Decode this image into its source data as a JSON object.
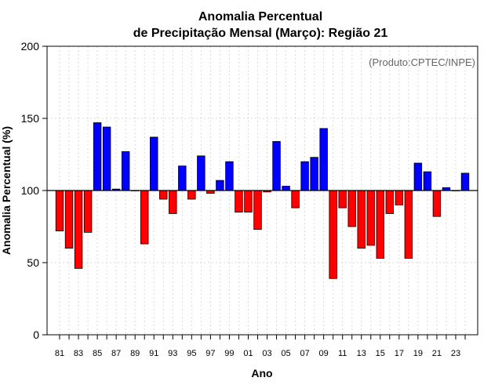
{
  "chart_data": {
    "type": "bar",
    "title_line1": "Anomalia Percentual",
    "title_line2": "de Precipitação Mensal (Março): Região 21",
    "xlabel": "Ano",
    "ylabel": "Anomalia Percentual (%)",
    "annotation": "(Produto:CPTEC/INPE)",
    "baseline": 100,
    "ylim": [
      0,
      200
    ],
    "yticks": [
      0,
      50,
      100,
      150,
      200
    ],
    "grid": true,
    "categories": [
      "1981",
      "1982",
      "1983",
      "1984",
      "1985",
      "1986",
      "1987",
      "1988",
      "1989",
      "1990",
      "1991",
      "1992",
      "1993",
      "1994",
      "1995",
      "1996",
      "1997",
      "1998",
      "1999",
      "2000",
      "2001",
      "2002",
      "2003",
      "2004",
      "2005",
      "2006",
      "2007",
      "2008",
      "2009",
      "2010",
      "2011",
      "2012",
      "2013",
      "2014",
      "2015",
      "2016",
      "2017",
      "2018",
      "2019",
      "2020",
      "2021",
      "2022",
      "2023",
      "2024"
    ],
    "xtick_labels": [
      "81",
      "",
      "83",
      "",
      "85",
      "",
      "87",
      "",
      "89",
      "",
      "91",
      "",
      "93",
      "",
      "95",
      "",
      "97",
      "",
      "99",
      "",
      "01",
      "",
      "03",
      "",
      "05",
      "",
      "07",
      "",
      "09",
      "",
      "11",
      "",
      "13",
      "",
      "15",
      "",
      "17",
      "",
      "19",
      "",
      "21",
      "",
      "23",
      ""
    ],
    "values": [
      72,
      60,
      46,
      71,
      147,
      144,
      101,
      127,
      100,
      63,
      137,
      94,
      84,
      117,
      94,
      124,
      98,
      107,
      120,
      85,
      85,
      73,
      99,
      134,
      103,
      88,
      120,
      123,
      143,
      39,
      88,
      75,
      60,
      62,
      53,
      84,
      90,
      53,
      119,
      113,
      82,
      102,
      100,
      112
    ],
    "colors": {
      "above": "#0000ff",
      "below": "#ff0000",
      "bar_edge": "#000000",
      "grid": "#d9d9d9",
      "axis": "#000000"
    }
  }
}
